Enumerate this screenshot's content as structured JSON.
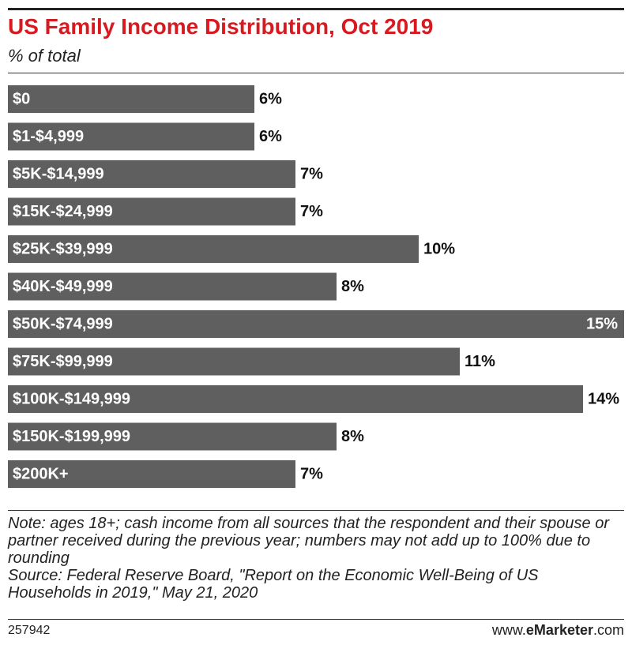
{
  "header": {
    "title": "US Family Income Distribution, Oct 2019",
    "subtitle": "% of total"
  },
  "chart_data": {
    "type": "bar",
    "orientation": "horizontal",
    "title": "US Family Income Distribution, Oct 2019",
    "subtitle": "% of total",
    "categories": [
      "$0",
      "$1-$4,999",
      "$5K-$14,999",
      "$15K-$24,999",
      "$25K-$39,999",
      "$40K-$49,999",
      "$50K-$74,999",
      "$75K-$99,999",
      "$100K-$149,999",
      "$150K-$199,999",
      "$200K+"
    ],
    "values": [
      6,
      6,
      7,
      7,
      10,
      8,
      15,
      11,
      14,
      8,
      7
    ],
    "value_labels": [
      "6%",
      "6%",
      "7%",
      "7%",
      "10%",
      "8%",
      "15%",
      "11%",
      "14%",
      "8%",
      "7%"
    ],
    "xlim": [
      0,
      15
    ],
    "grid": false,
    "legend": "none",
    "bar_color": "#5f5f5f",
    "category_label_color": "#ffffff",
    "value_label_color": "#111111"
  },
  "notes": {
    "note": "Note: ages 18+; cash income from all sources that the respondent and their spouse or partner received during the previous year; numbers may not add up to 100% due to rounding",
    "source": "Source: Federal Reserve Board, \"Report on the Economic Well-Being of US Households in 2019,\" May 21, 2020"
  },
  "footer": {
    "chart_id": "257942",
    "brand_prefix": "www.",
    "brand_name": "eMarketer",
    "brand_suffix": ".com"
  },
  "colors": {
    "title": "#d71920",
    "bar": "#5f5f5f"
  }
}
